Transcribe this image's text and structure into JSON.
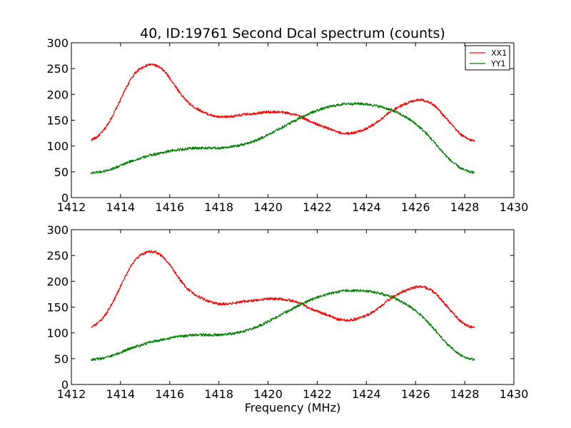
{
  "chart_data": [
    {
      "type": "line",
      "title": "40, ID:19761 Second Dcal spectrum (counts)",
      "xlabel": "",
      "ylabel": "",
      "xlim": [
        1412,
        1430
      ],
      "ylim": [
        0,
        300
      ],
      "xticks": [
        "1412",
        "1414",
        "1416",
        "1418",
        "1420",
        "1422",
        "1424",
        "1426",
        "1428",
        "1430"
      ],
      "yticks": [
        "0",
        "50",
        "100",
        "150",
        "200",
        "250",
        "300"
      ],
      "grid": false,
      "legend": {
        "position": "top-right",
        "entries": [
          "XX1",
          "YY1"
        ]
      },
      "series": [
        {
          "name": "XX1",
          "color": "#ff0000",
          "x": [
            1412.8,
            1413.0,
            1413.2,
            1413.4,
            1413.6,
            1413.8,
            1414.0,
            1414.2,
            1414.4,
            1414.6,
            1414.8,
            1415.0,
            1415.2,
            1415.4,
            1415.6,
            1415.8,
            1416.0,
            1416.2,
            1416.4,
            1416.6,
            1416.8,
            1417.0,
            1417.2,
            1417.4,
            1417.6,
            1417.8,
            1418.0,
            1418.2,
            1418.4,
            1418.6,
            1418.8,
            1419.0,
            1419.2,
            1419.4,
            1419.6,
            1419.8,
            1420.0,
            1420.2,
            1420.4,
            1420.6,
            1420.8,
            1421.0,
            1421.2,
            1421.4,
            1421.6,
            1421.8,
            1422.0,
            1422.2,
            1422.4,
            1422.6,
            1422.8,
            1423.0,
            1423.2,
            1423.4,
            1423.6,
            1423.8,
            1424.0,
            1424.2,
            1424.4,
            1424.6,
            1424.8,
            1425.0,
            1425.2,
            1425.4,
            1425.6,
            1425.8,
            1426.0,
            1426.2,
            1426.4,
            1426.6,
            1426.8,
            1427.0,
            1427.2,
            1427.4,
            1427.6,
            1427.8,
            1428.0,
            1428.2,
            1428.4
          ],
          "values": [
            112,
            116,
            124,
            136,
            152,
            170,
            190,
            210,
            228,
            242,
            250,
            255,
            258,
            257,
            252,
            244,
            232,
            218,
            204,
            192,
            182,
            175,
            170,
            165,
            161,
            158,
            156,
            156,
            157,
            158,
            159,
            161,
            162,
            163,
            164,
            165,
            166,
            166,
            166,
            165,
            164,
            162,
            159,
            155,
            150,
            146,
            142,
            138,
            135,
            131,
            127,
            125,
            124,
            125,
            127,
            130,
            134,
            139,
            145,
            152,
            160,
            167,
            173,
            178,
            182,
            186,
            189,
            190,
            188,
            184,
            177,
            167,
            156,
            145,
            134,
            124,
            117,
            112,
            110
          ]
        },
        {
          "name": "YY1",
          "color": "#008000",
          "x": [
            1412.8,
            1413.0,
            1413.2,
            1413.4,
            1413.6,
            1413.8,
            1414.0,
            1414.2,
            1414.4,
            1414.6,
            1414.8,
            1415.0,
            1415.2,
            1415.4,
            1415.6,
            1415.8,
            1416.0,
            1416.2,
            1416.4,
            1416.6,
            1416.8,
            1417.0,
            1417.2,
            1417.4,
            1417.6,
            1417.8,
            1418.0,
            1418.2,
            1418.4,
            1418.6,
            1418.8,
            1419.0,
            1419.2,
            1419.4,
            1419.6,
            1419.8,
            1420.0,
            1420.2,
            1420.4,
            1420.6,
            1420.8,
            1421.0,
            1421.2,
            1421.4,
            1421.6,
            1421.8,
            1422.0,
            1422.2,
            1422.4,
            1422.6,
            1422.8,
            1423.0,
            1423.2,
            1423.4,
            1423.6,
            1423.8,
            1424.0,
            1424.2,
            1424.4,
            1424.6,
            1424.8,
            1425.0,
            1425.2,
            1425.4,
            1425.6,
            1425.8,
            1426.0,
            1426.2,
            1426.4,
            1426.6,
            1426.8,
            1427.0,
            1427.2,
            1427.4,
            1427.6,
            1427.8,
            1428.0,
            1428.2,
            1428.4
          ],
          "values": [
            48,
            49,
            50,
            52,
            55,
            58,
            62,
            66,
            70,
            73,
            76,
            79,
            82,
            84,
            86,
            88,
            90,
            92,
            93,
            94,
            95,
            96,
            96,
            96,
            96,
            96,
            96,
            97,
            98,
            99,
            101,
            103,
            106,
            109,
            113,
            117,
            122,
            127,
            132,
            137,
            142,
            147,
            152,
            157,
            161,
            165,
            169,
            172,
            175,
            177,
            179,
            181,
            182,
            182,
            182,
            182,
            181,
            180,
            178,
            176,
            173,
            170,
            166,
            161,
            156,
            150,
            143,
            135,
            126,
            116,
            105,
            94,
            83,
            73,
            65,
            58,
            53,
            50,
            48
          ]
        }
      ]
    },
    {
      "type": "line",
      "title": "",
      "xlabel": "Frequency (MHz)",
      "ylabel": "",
      "xlim": [
        1412,
        1430
      ],
      "ylim": [
        0,
        300
      ],
      "xticks": [
        "1412",
        "1414",
        "1416",
        "1418",
        "1420",
        "1422",
        "1424",
        "1426",
        "1428",
        "1430"
      ],
      "yticks": [
        "0",
        "50",
        "100",
        "150",
        "200",
        "250",
        "300"
      ],
      "grid": false,
      "series": [
        {
          "color": "#ff0000",
          "x": [
            1412.8,
            1413.0,
            1413.2,
            1413.4,
            1413.6,
            1413.8,
            1414.0,
            1414.2,
            1414.4,
            1414.6,
            1414.8,
            1415.0,
            1415.2,
            1415.4,
            1415.6,
            1415.8,
            1416.0,
            1416.2,
            1416.4,
            1416.6,
            1416.8,
            1417.0,
            1417.2,
            1417.4,
            1417.6,
            1417.8,
            1418.0,
            1418.2,
            1418.4,
            1418.6,
            1418.8,
            1419.0,
            1419.2,
            1419.4,
            1419.6,
            1419.8,
            1420.0,
            1420.2,
            1420.4,
            1420.6,
            1420.8,
            1421.0,
            1421.2,
            1421.4,
            1421.6,
            1421.8,
            1422.0,
            1422.2,
            1422.4,
            1422.6,
            1422.8,
            1423.0,
            1423.2,
            1423.4,
            1423.6,
            1423.8,
            1424.0,
            1424.2,
            1424.4,
            1424.6,
            1424.8,
            1425.0,
            1425.2,
            1425.4,
            1425.6,
            1425.8,
            1426.0,
            1426.2,
            1426.4,
            1426.6,
            1426.8,
            1427.0,
            1427.2,
            1427.4,
            1427.6,
            1427.8,
            1428.0,
            1428.2,
            1428.4
          ],
          "values": [
            112,
            116,
            124,
            136,
            152,
            170,
            190,
            210,
            228,
            242,
            250,
            255,
            258,
            257,
            252,
            244,
            232,
            218,
            204,
            192,
            182,
            175,
            170,
            165,
            161,
            158,
            156,
            156,
            157,
            158,
            159,
            161,
            162,
            163,
            164,
            165,
            166,
            166,
            166,
            165,
            164,
            162,
            159,
            155,
            150,
            146,
            142,
            138,
            135,
            131,
            127,
            125,
            124,
            125,
            127,
            130,
            134,
            139,
            145,
            152,
            160,
            167,
            173,
            178,
            182,
            186,
            189,
            190,
            188,
            184,
            177,
            167,
            156,
            145,
            134,
            124,
            117,
            112,
            110
          ]
        },
        {
          "color": "#008000",
          "x": [
            1412.8,
            1413.0,
            1413.2,
            1413.4,
            1413.6,
            1413.8,
            1414.0,
            1414.2,
            1414.4,
            1414.6,
            1414.8,
            1415.0,
            1415.2,
            1415.4,
            1415.6,
            1415.8,
            1416.0,
            1416.2,
            1416.4,
            1416.6,
            1416.8,
            1417.0,
            1417.2,
            1417.4,
            1417.6,
            1417.8,
            1418.0,
            1418.2,
            1418.4,
            1418.6,
            1418.8,
            1419.0,
            1419.2,
            1419.4,
            1419.6,
            1419.8,
            1420.0,
            1420.2,
            1420.4,
            1420.6,
            1420.8,
            1421.0,
            1421.2,
            1421.4,
            1421.6,
            1421.8,
            1422.0,
            1422.2,
            1422.4,
            1422.6,
            1422.8,
            1423.0,
            1423.2,
            1423.4,
            1423.6,
            1423.8,
            1424.0,
            1424.2,
            1424.4,
            1424.6,
            1424.8,
            1425.0,
            1425.2,
            1425.4,
            1425.6,
            1425.8,
            1426.0,
            1426.2,
            1426.4,
            1426.6,
            1426.8,
            1427.0,
            1427.2,
            1427.4,
            1427.6,
            1427.8,
            1428.0,
            1428.2,
            1428.4
          ],
          "values": [
            48,
            49,
            50,
            52,
            55,
            58,
            62,
            66,
            70,
            73,
            76,
            79,
            82,
            84,
            86,
            88,
            90,
            92,
            93,
            94,
            95,
            96,
            96,
            96,
            96,
            96,
            96,
            97,
            98,
            99,
            101,
            103,
            106,
            109,
            113,
            117,
            122,
            127,
            132,
            137,
            142,
            147,
            152,
            157,
            161,
            165,
            169,
            172,
            175,
            177,
            179,
            181,
            182,
            182,
            182,
            182,
            181,
            180,
            178,
            176,
            173,
            170,
            166,
            161,
            156,
            150,
            143,
            135,
            126,
            116,
            105,
            94,
            83,
            73,
            65,
            58,
            53,
            50,
            48
          ]
        }
      ]
    }
  ]
}
